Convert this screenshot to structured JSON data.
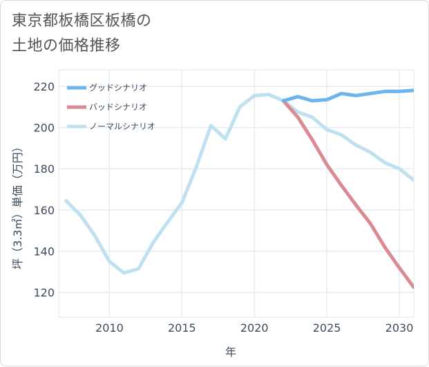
{
  "title": {
    "line1": "東京都板橋区板橋の",
    "line2": "土地の価格推移"
  },
  "chart_data": {
    "type": "line",
    "xlabel": "年",
    "ylabel": "坪（3.3㎡）単価（万円）",
    "xlim": [
      2006.5,
      2031
    ],
    "ylim": [
      108,
      228
    ],
    "x_ticks": [
      2010,
      2015,
      2020,
      2025,
      2030
    ],
    "y_ticks": [
      120,
      140,
      160,
      180,
      200,
      220
    ],
    "grid": true,
    "legend_position": "top-left",
    "series": [
      {
        "name": "グッドシナリオ",
        "color": "#6cb4ee",
        "x": [
          2022,
          2023,
          2024,
          2025,
          2026,
          2027,
          2028,
          2029,
          2030,
          2031
        ],
        "y": [
          213,
          215,
          213,
          213.5,
          216.5,
          215.5,
          216.5,
          217.5,
          217.5,
          218
        ]
      },
      {
        "name": "バッドシナリオ",
        "color": "#d98a92",
        "x": [
          2022,
          2023,
          2024,
          2025,
          2026,
          2027,
          2028,
          2029,
          2030,
          2031
        ],
        "y": [
          213,
          205,
          194,
          182,
          172,
          162.5,
          153.5,
          142,
          132,
          122.5
        ]
      },
      {
        "name": "ノーマルシナリオ",
        "color": "#bfe0ee",
        "x": [
          2007,
          2008,
          2009,
          2010,
          2011,
          2012,
          2013,
          2014,
          2015,
          2016,
          2017,
          2018,
          2019,
          2020,
          2021,
          2022,
          2023,
          2024,
          2025,
          2026,
          2027,
          2028,
          2029,
          2030,
          2031
        ],
        "y": [
          164.5,
          157.5,
          147.5,
          135,
          129.5,
          131.5,
          144,
          154,
          163.5,
          181,
          201,
          194.5,
          210,
          215.5,
          216,
          213,
          207.5,
          205,
          199,
          196.5,
          191.5,
          188,
          183,
          180,
          174.5
        ]
      }
    ]
  }
}
